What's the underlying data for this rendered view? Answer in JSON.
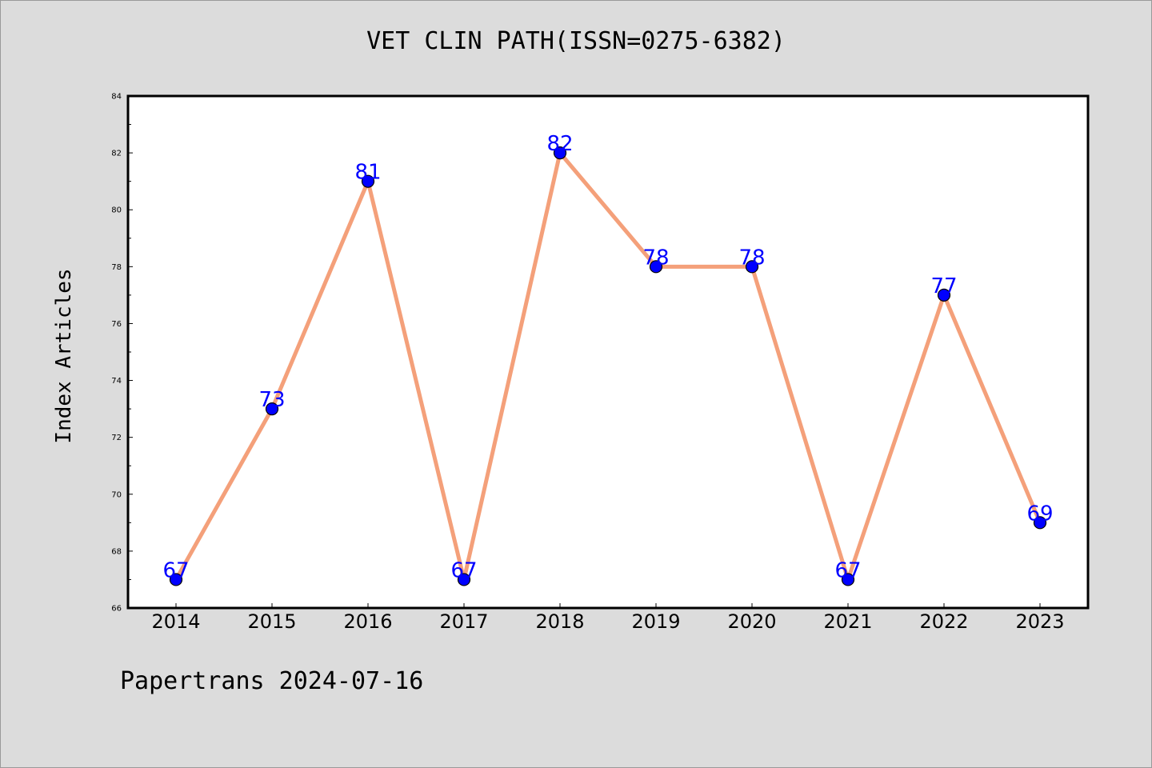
{
  "title": "VET CLIN PATH(ISSN=0275-6382)",
  "footer": "Papertrans 2024-07-16",
  "colors": {
    "background": "#dcdcdc",
    "plot_background": "#ffffff",
    "line": "#f4a07a",
    "marker": "#0000ff",
    "data_label": "#0000ff"
  },
  "chart_data": {
    "type": "line",
    "title": "VET CLIN PATH(ISSN=0275-6382)",
    "xlabel": "",
    "ylabel": "Index Articles",
    "categories": [
      "2014",
      "2015",
      "2016",
      "2017",
      "2018",
      "2019",
      "2020",
      "2021",
      "2022",
      "2023"
    ],
    "series": [
      {
        "values": [
          67,
          73,
          81,
          67,
          82,
          78,
          78,
          67,
          77,
          69
        ]
      }
    ],
    "ylim": [
      66,
      84
    ],
    "yticks": [
      "66",
      "68",
      "70",
      "72",
      "74",
      "76",
      "78",
      "80",
      "82",
      "84"
    ],
    "grid": false,
    "legend": "none",
    "data_labels": true
  }
}
